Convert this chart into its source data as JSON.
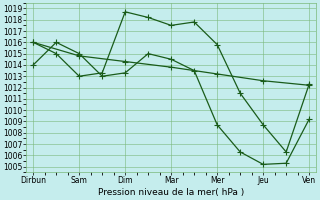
{
  "x_labels": [
    "Dirbun",
    "Sam",
    "Dim",
    "Mar",
    "Mer",
    "Jeu",
    "Ven"
  ],
  "x_tick_positions": [
    0,
    2,
    4,
    6,
    8,
    10,
    12
  ],
  "series": [
    {
      "x": [
        0,
        1,
        2,
        3,
        4,
        5,
        6,
        7,
        8,
        9,
        10,
        11,
        12
      ],
      "y": [
        1016.0,
        1015.0,
        1013.0,
        1013.3,
        1018.7,
        1018.2,
        1017.5,
        1017.8,
        1015.8,
        1011.5,
        1008.7,
        1006.3,
        1012.3
      ]
    },
    {
      "x": [
        0,
        2,
        4,
        6,
        8,
        10,
        12
      ],
      "y": [
        1016.0,
        1014.8,
        1014.3,
        1013.8,
        1013.2,
        1012.6,
        1012.2
      ]
    },
    {
      "x": [
        0,
        1,
        2,
        3,
        4,
        5,
        6,
        7,
        8,
        9,
        10,
        11,
        12
      ],
      "y": [
        1014.0,
        1016.0,
        1015.0,
        1013.0,
        1013.3,
        1015.0,
        1014.5,
        1013.5,
        1008.7,
        1006.3,
        1005.2,
        1005.3,
        1009.2
      ]
    }
  ],
  "line_color": "#1a5c1a",
  "marker": "+",
  "marker_size": 4,
  "line_width": 0.9,
  "ylim": [
    1005,
    1019
  ],
  "yticks": [
    1005,
    1006,
    1007,
    1008,
    1009,
    1010,
    1011,
    1012,
    1013,
    1014,
    1015,
    1016,
    1017,
    1018,
    1019
  ],
  "xlabel": "Pression niveau de la mer( hPa )",
  "background_color": "#c5eded",
  "grid_color": "#7ab87a",
  "tick_fontsize": 5.5,
  "xlabel_fontsize": 6.5
}
